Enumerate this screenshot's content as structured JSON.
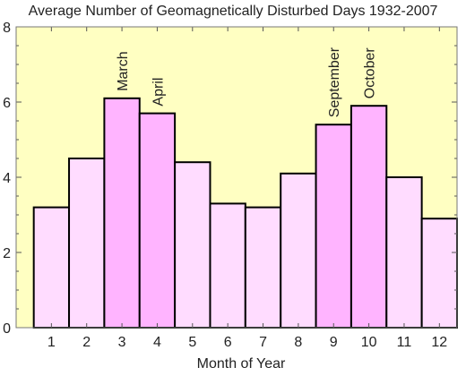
{
  "chart_data": {
    "type": "bar",
    "title": "Average Number of Geomagnetically Disturbed Days 1932-2007",
    "xlabel": "Month of Year",
    "ylabel": "",
    "categories": [
      "1",
      "2",
      "3",
      "4",
      "5",
      "6",
      "7",
      "8",
      "9",
      "10",
      "11",
      "12"
    ],
    "values": [
      3.2,
      4.5,
      6.1,
      5.7,
      4.4,
      3.3,
      3.2,
      4.1,
      5.4,
      5.9,
      4.0,
      2.9
    ],
    "ylim": [
      0,
      8
    ],
    "yticks": [
      0,
      2,
      4,
      6,
      8
    ],
    "highlighted": [
      3,
      4,
      9,
      10
    ],
    "annotations": [
      {
        "category": "3",
        "text": "March"
      },
      {
        "category": "4",
        "text": "April"
      },
      {
        "category": "9",
        "text": "September"
      },
      {
        "category": "10",
        "text": "October"
      }
    ],
    "grid": false,
    "colors": {
      "plot_background": "#ffffc2",
      "bar_fill": "#ffdcff",
      "bar_highlight_fill": "#ffb4ff",
      "bar_stroke": "#000000"
    }
  }
}
